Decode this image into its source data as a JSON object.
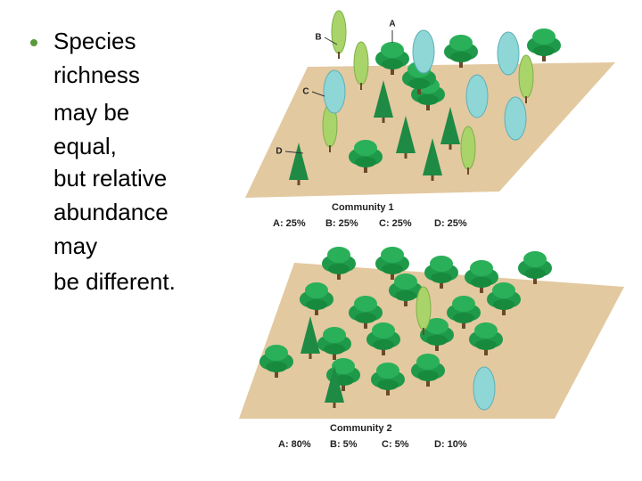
{
  "bullet": {
    "lines": [
      "Species",
      "richness",
      "may be",
      "equal,",
      "but relative",
      "abundance",
      "may",
      "be different."
    ]
  },
  "figure": {
    "labels": [
      "A",
      "B",
      "C",
      "D"
    ],
    "community_1": {
      "title": "Community 1",
      "abundances": [
        "A: 25%",
        "B: 25%",
        "C: 25%",
        "D: 25%"
      ]
    },
    "community_2": {
      "title": "Community 2",
      "abundances": [
        "A: 80%",
        "B: 5%",
        "C: 5%",
        "D: 10%"
      ]
    }
  }
}
